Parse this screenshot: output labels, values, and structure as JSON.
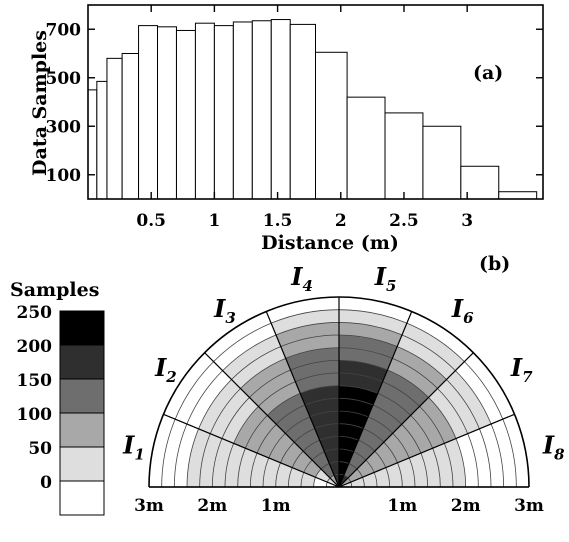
{
  "chart_data": [
    {
      "type": "bar",
      "panel_label": "(a)",
      "xlabel": "Distance (m)",
      "ylabel": "Data Samples",
      "xlim": [
        0,
        3.6
      ],
      "ylim": [
        0,
        800
      ],
      "xticks": [
        0.5,
        1,
        1.5,
        2,
        2.5,
        3
      ],
      "yticks": [
        100,
        300,
        500,
        700
      ],
      "bin_width": 0.15,
      "bins": [
        {
          "x0": 0.0,
          "x1": 0.07,
          "value": 450
        },
        {
          "x0": 0.07,
          "x1": 0.15,
          "value": 485
        },
        {
          "x0": 0.15,
          "x1": 0.27,
          "value": 580
        },
        {
          "x0": 0.27,
          "x1": 0.4,
          "value": 600
        },
        {
          "x0": 0.4,
          "x1": 0.55,
          "value": 715
        },
        {
          "x0": 0.55,
          "x1": 0.7,
          "value": 710
        },
        {
          "x0": 0.7,
          "x1": 0.85,
          "value": 695
        },
        {
          "x0": 0.85,
          "x1": 1.0,
          "value": 725
        },
        {
          "x0": 1.0,
          "x1": 1.15,
          "value": 715
        },
        {
          "x0": 1.15,
          "x1": 1.3,
          "value": 730
        },
        {
          "x0": 1.3,
          "x1": 1.45,
          "value": 735
        },
        {
          "x0": 1.45,
          "x1": 1.6,
          "value": 740
        },
        {
          "x0": 1.6,
          "x1": 1.8,
          "value": 720
        },
        {
          "x0": 1.8,
          "x1": 2.05,
          "value": 605
        },
        {
          "x0": 2.05,
          "x1": 2.35,
          "value": 420
        },
        {
          "x0": 2.35,
          "x1": 2.65,
          "value": 355
        },
        {
          "x0": 2.65,
          "x1": 2.95,
          "value": 300
        },
        {
          "x0": 2.95,
          "x1": 3.25,
          "value": 135
        },
        {
          "x0": 3.25,
          "x1": 3.55,
          "value": 30
        }
      ]
    },
    {
      "type": "heatmap",
      "panel_label": "(b)",
      "legend_title": "Samples",
      "legend_levels": [
        "250",
        "200",
        "150",
        "100",
        "50",
        "0"
      ],
      "legend_colors": [
        "#000000",
        "#2f2f2f",
        "#6e6e6e",
        "#a8a8a8",
        "#dedede",
        "#ffffff"
      ],
      "sectors": [
        {
          "letter": "I",
          "index": "1"
        },
        {
          "letter": "I",
          "index": "2"
        },
        {
          "letter": "I",
          "index": "3"
        },
        {
          "letter": "I",
          "index": "4"
        },
        {
          "letter": "I",
          "index": "5"
        },
        {
          "letter": "I",
          "index": "6"
        },
        {
          "letter": "I",
          "index": "7"
        },
        {
          "letter": "I",
          "index": "8"
        }
      ],
      "distance_labels": [
        "3m",
        "2m",
        "1m",
        "1m",
        "2m",
        "3m"
      ],
      "max_range_m": 3.0,
      "ring_step_m": 0.2,
      "sector_levels": [
        [
          0,
          0,
          1,
          1,
          1,
          1,
          1,
          1,
          1,
          1,
          1,
          1,
          0,
          0,
          0
        ],
        [
          1,
          1,
          2,
          2,
          2,
          2,
          2,
          2,
          2,
          1,
          1,
          1,
          0,
          0,
          0
        ],
        [
          2,
          3,
          3,
          3,
          3,
          3,
          3,
          3,
          2,
          2,
          2,
          1,
          1,
          0,
          0
        ],
        [
          4,
          4,
          4,
          4,
          4,
          4,
          4,
          4,
          3,
          3,
          3,
          2,
          2,
          1,
          0
        ],
        [
          5,
          5,
          5,
          5,
          5,
          5,
          5,
          5,
          4,
          4,
          3,
          3,
          2,
          1,
          0
        ],
        [
          4,
          3,
          3,
          3,
          3,
          3,
          3,
          3,
          3,
          3,
          2,
          2,
          1,
          1,
          0
        ],
        [
          2,
          2,
          2,
          2,
          2,
          2,
          2,
          2,
          2,
          2,
          1,
          1,
          1,
          0,
          0
        ],
        [
          1,
          1,
          1,
          1,
          1,
          1,
          1,
          1,
          1,
          1,
          0,
          0,
          0,
          0,
          0
        ]
      ]
    }
  ]
}
